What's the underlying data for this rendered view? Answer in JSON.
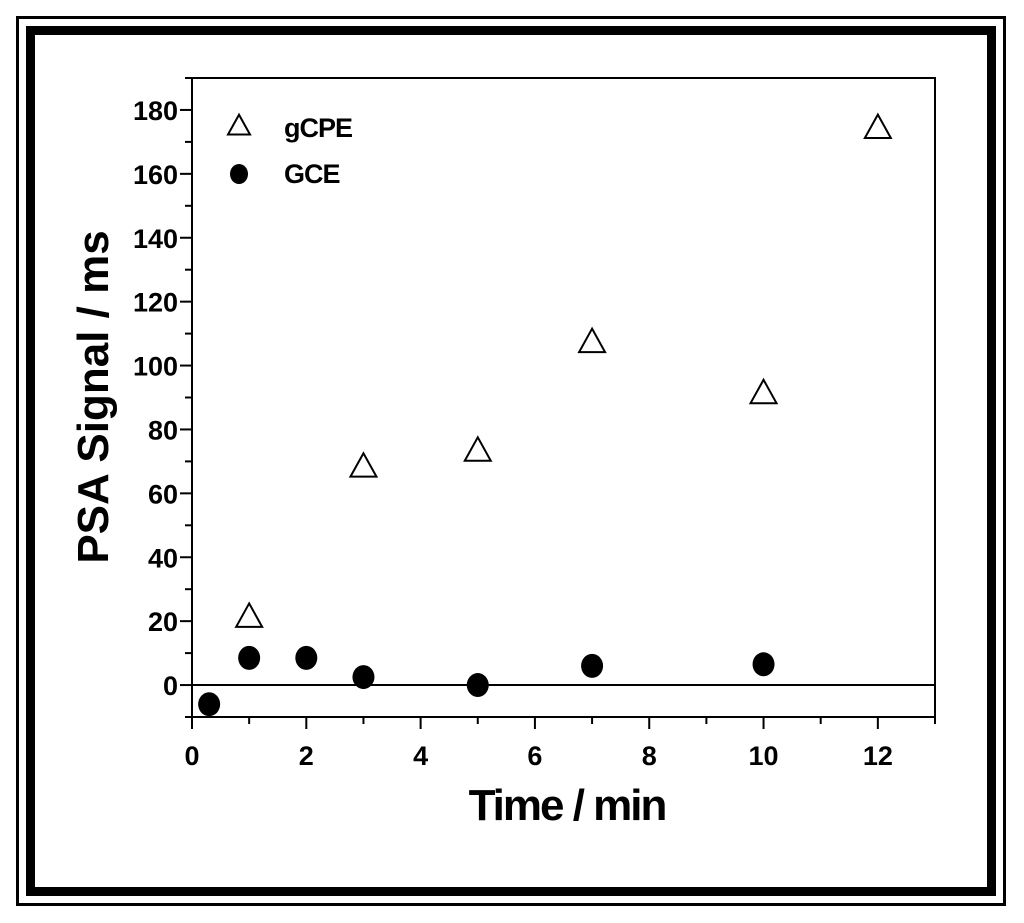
{
  "chart_data": {
    "type": "scatter",
    "xlabel": "Time / min",
    "ylabel": "PSA Signal / ms",
    "xlim": [
      0,
      13
    ],
    "ylim": [
      -10,
      190
    ],
    "x_ticks": [
      0,
      2,
      4,
      6,
      8,
      10,
      12
    ],
    "y_ticks": [
      0,
      20,
      40,
      60,
      80,
      100,
      120,
      140,
      160,
      180
    ],
    "zero_line": true,
    "legend_position": "top-left",
    "series": [
      {
        "name": "gCPE",
        "marker": "open-triangle",
        "color": "#000000",
        "points": [
          {
            "x": 1,
            "y": 21
          },
          {
            "x": 3,
            "y": 68
          },
          {
            "x": 5,
            "y": 73
          },
          {
            "x": 7,
            "y": 107
          },
          {
            "x": 10,
            "y": 91
          },
          {
            "x": 12,
            "y": 174
          }
        ]
      },
      {
        "name": "GCE",
        "marker": "filled-circle",
        "color": "#000000",
        "points": [
          {
            "x": 0.3,
            "y": -6
          },
          {
            "x": 1,
            "y": 8.5
          },
          {
            "x": 2,
            "y": 8.5
          },
          {
            "x": 3,
            "y": 2.5
          },
          {
            "x": 5,
            "y": 0
          },
          {
            "x": 7,
            "y": 6
          },
          {
            "x": 10,
            "y": 6.5
          }
        ]
      }
    ]
  }
}
